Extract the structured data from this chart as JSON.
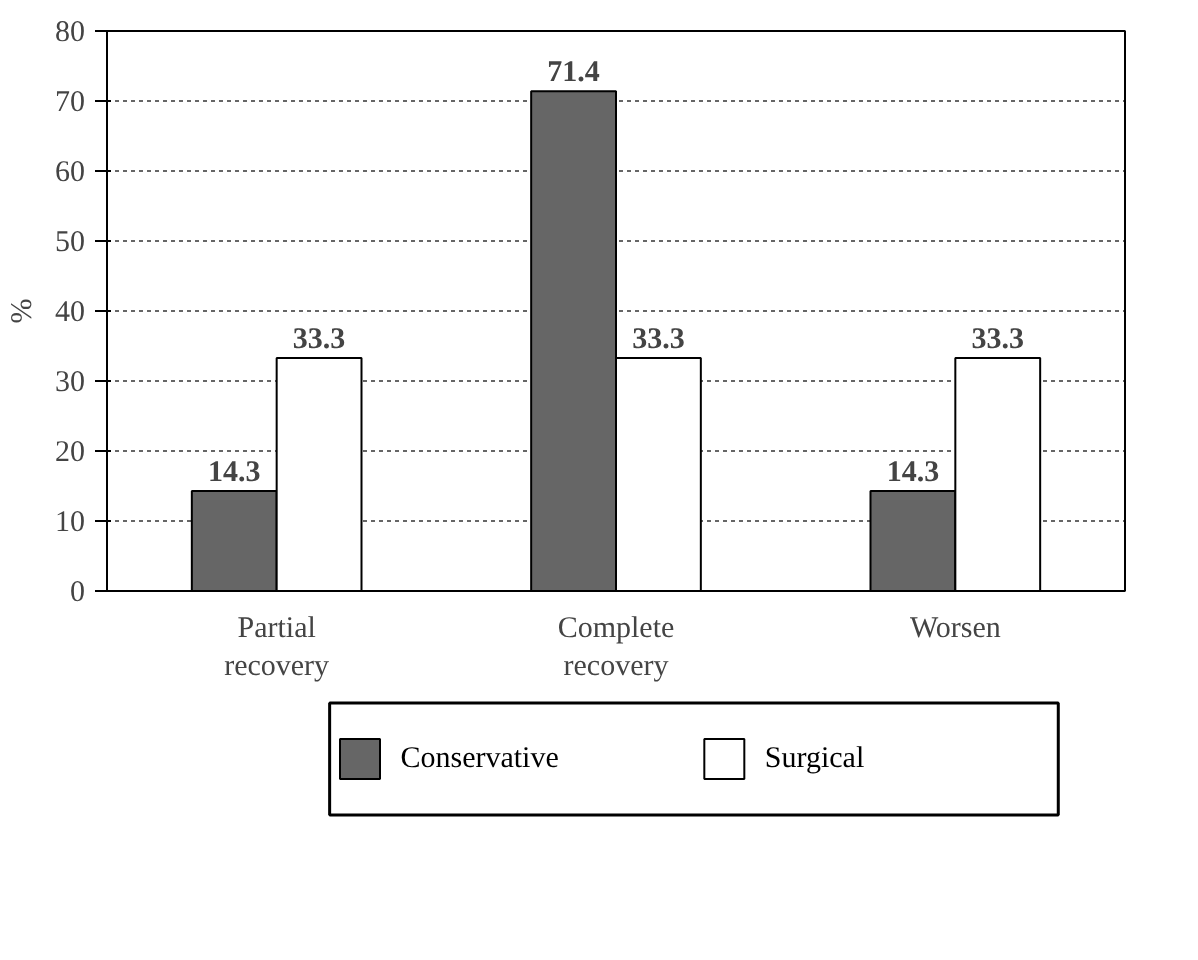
{
  "chart_data": {
    "type": "bar",
    "ylabel": "%",
    "categories": [
      "Partial\nrecovery",
      "Complete\nrecovery",
      "Worsen"
    ],
    "series": [
      {
        "name": "Conservative",
        "color": "#666666",
        "values": [
          14.3,
          71.4,
          14.3
        ]
      },
      {
        "name": "Surgical",
        "color": "#ffffff",
        "values": [
          33.3,
          33.3,
          33.3
        ]
      }
    ],
    "ylim": [
      0,
      80
    ],
    "yticks": [
      0,
      10,
      20,
      30,
      40,
      50,
      60,
      70,
      80
    ],
    "grid": "y",
    "legend": "bottom",
    "data_labels": true
  }
}
